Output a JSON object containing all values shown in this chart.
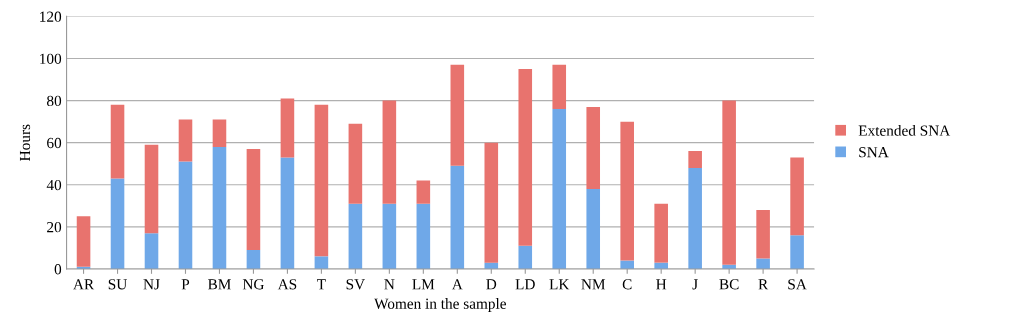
{
  "chart_data": {
    "type": "bar",
    "stacked": true,
    "xlabel": "Women in the sample",
    "ylabel": "Hours",
    "categories": [
      "AR",
      "SU",
      "NJ",
      "P",
      "BM",
      "NG",
      "AS",
      "T",
      "SV",
      "N",
      "LM",
      "A",
      "D",
      "LD",
      "LK",
      "NM",
      "C",
      "H",
      "J",
      "BC",
      "R",
      "SA"
    ],
    "series": [
      {
        "name": "SNA",
        "color": "#6fa8e8",
        "values": [
          1,
          43,
          17,
          51,
          58,
          9,
          53,
          6,
          31,
          31,
          31,
          49,
          3,
          11,
          76,
          38,
          4,
          3,
          48,
          2,
          5,
          16
        ]
      },
      {
        "name": "Extended SNA",
        "color": "#e8736e",
        "values": [
          24,
          35,
          42,
          20,
          13,
          48,
          28,
          72,
          38,
          49,
          11,
          48,
          57,
          84,
          21,
          39,
          66,
          28,
          8,
          78,
          23,
          37
        ]
      }
    ],
    "ylim": [
      0,
      120
    ],
    "yticks": [
      0,
      20,
      40,
      60,
      80,
      100,
      120
    ],
    "grid": "y",
    "legend": "right"
  }
}
